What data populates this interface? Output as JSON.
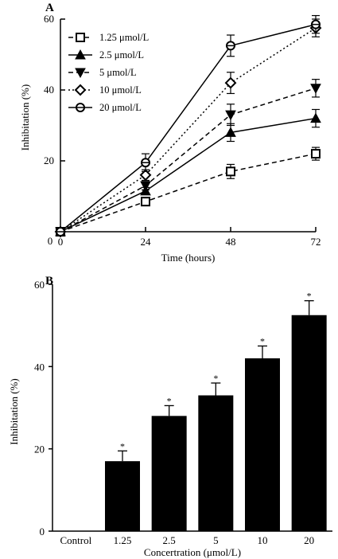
{
  "chart_data": [
    {
      "panel": "A",
      "type": "line",
      "xlabel": "Time (hours)",
      "ylabel": "Inhibitation (%)",
      "xlim": [
        0,
        72
      ],
      "ylim": [
        0,
        60
      ],
      "xticks": [
        0,
        24,
        48,
        72
      ],
      "yticks": [
        20,
        40,
        60
      ],
      "y_zero_label": "0",
      "legend_position": "top-left",
      "x": [
        0,
        24,
        48,
        72
      ],
      "series": [
        {
          "name": "1.25 μmol/L",
          "marker": "square",
          "dash": "dashed",
          "values": [
            0,
            8.5,
            17,
            22
          ],
          "errors": [
            0,
            0.8,
            2,
            1.8
          ]
        },
        {
          "name": "2.5 μmol/L",
          "marker": "triangle-up",
          "dash": "solid",
          "values": [
            0,
            11.5,
            28,
            32
          ],
          "errors": [
            0,
            1,
            2.5,
            2.5
          ]
        },
        {
          "name": "5 μmol/L",
          "marker": "triangle-down",
          "dash": "dashed",
          "values": [
            0,
            13,
            33,
            40.5
          ],
          "errors": [
            0,
            1.2,
            3,
            2.5
          ]
        },
        {
          "name": "10 μmol/L",
          "marker": "diamond",
          "dash": "dotted",
          "values": [
            0,
            16,
            42,
            57.5
          ],
          "errors": [
            0,
            1.5,
            3,
            2.5
          ]
        },
        {
          "name": "20 μmol/L",
          "marker": "circle",
          "dash": "solid",
          "values": [
            0,
            19.5,
            52.5,
            58.5
          ],
          "errors": [
            0,
            2.5,
            3,
            2.5
          ]
        }
      ]
    },
    {
      "panel": "B",
      "type": "bar",
      "xlabel": "Concertration (μmol/L)",
      "ylabel": "Inhibitation (%)",
      "ylim": [
        0,
        60
      ],
      "yticks": [
        0,
        20,
        40,
        60
      ],
      "categories": [
        "Control",
        "1.25",
        "2.5",
        "5",
        "10",
        "20"
      ],
      "values": [
        0,
        17,
        28,
        33,
        42,
        52.5
      ],
      "errors": [
        0,
        2.5,
        2.5,
        3,
        3,
        3.5
      ],
      "significance": [
        "",
        "*",
        "*",
        "*",
        "*",
        "*"
      ],
      "bar_color": "#000000"
    }
  ]
}
